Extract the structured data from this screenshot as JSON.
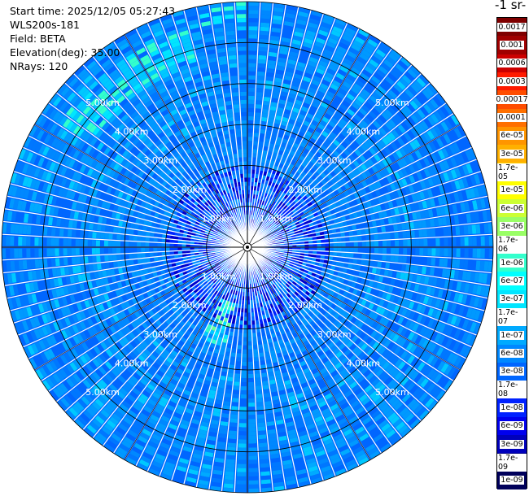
{
  "info": {
    "start_time": "Start time: 2025/12/05 05:27:43",
    "instrument": "WLS200s-181",
    "field": "Field: BETA",
    "elevation": "Elevation(deg): 35.00",
    "nrays": "NRays: 120"
  },
  "colorbar": {
    "title": "-1 sr-",
    "labels": [
      "0.0017",
      "0.001",
      "0.0006",
      "0.0003",
      "0.00017",
      "0.0001",
      "6e-05",
      "3e-05",
      "1.7e-05",
      "1e-05",
      "6e-06",
      "3e-06",
      "1.7e-06",
      "1e-06",
      "6e-07",
      "3e-07",
      "1.7e-07",
      "1e-07",
      "6e-08",
      "3e-08",
      "1.7e-08",
      "1e-08",
      "6e-09",
      "3e-09",
      "1.7e-09",
      "1e-09"
    ],
    "colors": [
      "#7f0000",
      "#a00000",
      "#cc0000",
      "#ff1a00",
      "#ff4d00",
      "#ff7000",
      "#ff9500",
      "#ffb000",
      "#ffd000",
      "#ffff00",
      "#ccff33",
      "#99ff66",
      "#66ff99",
      "#33ffcc",
      "#00ffff",
      "#00e5ff",
      "#00c8ff",
      "#00aaff",
      "#0088ff",
      "#0066ff",
      "#0044ff",
      "#0022ff",
      "#0000ee",
      "#0000bb",
      "#000088",
      "#00005a"
    ]
  },
  "chart_data": {
    "type": "heatmap",
    "projection": "polar (PPI)",
    "nrays": 120,
    "range_rings_km": [
      1,
      2,
      3,
      4,
      5,
      6
    ],
    "ring_labels": [
      "1.00km",
      "2.00km",
      "3.00km",
      "4.00km",
      "5.00km"
    ],
    "colormap": "jet (log scale)",
    "value_range": [
      1e-09,
      0.0017
    ],
    "background_level": 1e-08
  }
}
